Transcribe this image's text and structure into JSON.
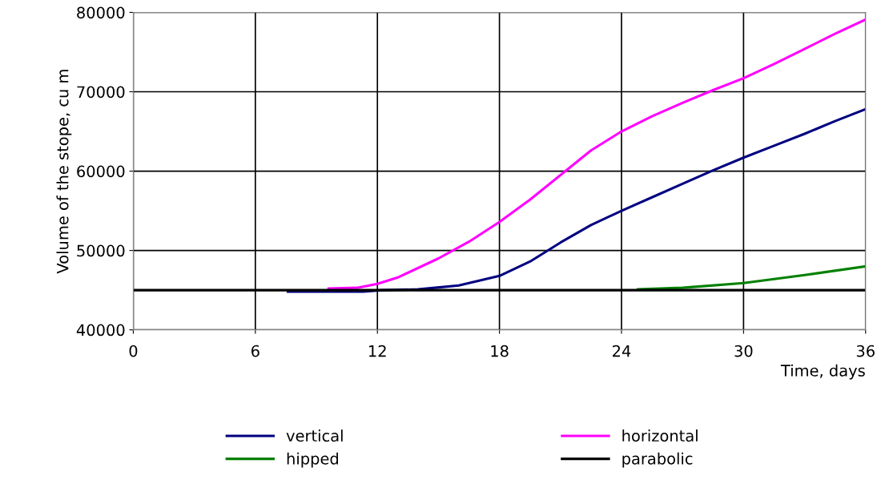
{
  "chart_data": {
    "type": "line",
    "xlabel": "Time, days",
    "ylabel": "Volume of the stope, cu m",
    "xlim": [
      0,
      36
    ],
    "xticks": [
      0,
      6,
      12,
      18,
      24,
      30,
      36
    ],
    "ylim": [
      40000,
      80000
    ],
    "yticks": [
      40000,
      50000,
      60000,
      70000,
      80000
    ],
    "grid": true,
    "legend": "bottom",
    "marker": "none",
    "line_style": "solid",
    "series": [
      {
        "name": "vertical",
        "color": "#000080",
        "x": [
          7.6,
          11.3,
          12.2,
          14,
          16,
          18,
          19.5,
          21,
          22.5,
          24,
          25.5,
          27,
          28.5,
          30,
          31.5,
          33,
          34.5,
          36
        ],
        "values": [
          44800,
          44800,
          45000,
          45100,
          45600,
          46800,
          48600,
          51000,
          53200,
          55000,
          56700,
          58400,
          60100,
          61700,
          63200,
          64700,
          66300,
          67800
        ]
      },
      {
        "name": "horizontal",
        "color": "#ff00ff",
        "x": [
          9.6,
          11,
          12,
          13,
          15,
          16.5,
          18,
          19.5,
          21,
          22.5,
          24,
          25.5,
          27,
          28.5,
          30,
          31.5,
          33,
          34.5,
          36
        ],
        "values": [
          45200,
          45300,
          45800,
          46600,
          49000,
          51100,
          53600,
          56400,
          59500,
          62600,
          65000,
          66900,
          68600,
          70200,
          71700,
          73500,
          75400,
          77300,
          79100
        ]
      },
      {
        "name": "hipped",
        "color": "#008000",
        "x": [
          24.8,
          27,
          30,
          33,
          36
        ],
        "values": [
          45100,
          45300,
          45900,
          46900,
          48000
        ]
      },
      {
        "name": "parabolic",
        "color": "#000000",
        "x": [
          0,
          36
        ],
        "values": [
          45000,
          45000
        ]
      }
    ]
  }
}
